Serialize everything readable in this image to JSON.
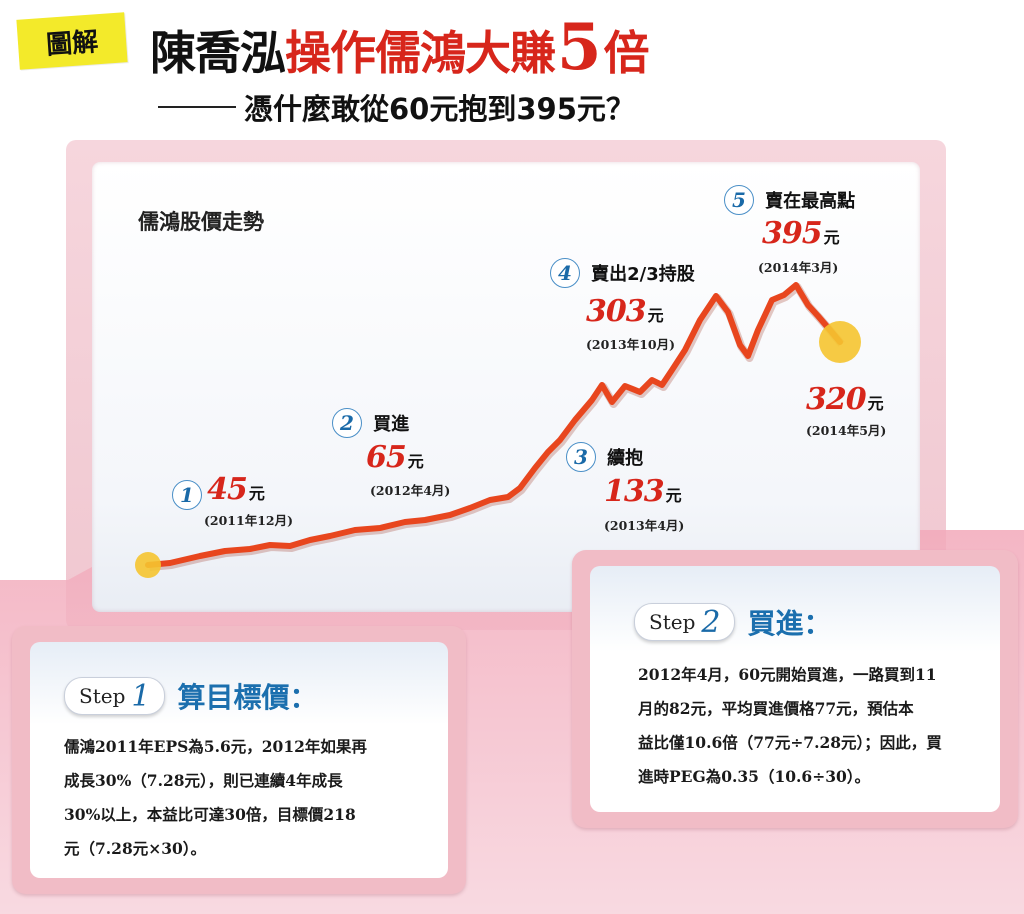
{
  "header": {
    "tag": "圖解",
    "title_black": "陳喬泓",
    "title_red": "操作儒鴻大賺",
    "title_big": "5",
    "title_end": "倍",
    "subtitle": "憑什麼敢從60元抱到395元？"
  },
  "chart_data": {
    "type": "line",
    "title": "儒鴻股價走勢",
    "colors": {
      "line": "#e8461e",
      "start_dot": "#f5c430",
      "end_dot": "#f5c430"
    },
    "annotations": [
      {
        "num": "1",
        "label": "",
        "price": "45",
        "unit": "元",
        "date": "(2011年12月)"
      },
      {
        "num": "2",
        "label": "買進",
        "price": "65",
        "unit": "元",
        "date": "(2012年4月)"
      },
      {
        "num": "3",
        "label": "續抱",
        "price": "133",
        "unit": "元",
        "date": "(2013年4月)"
      },
      {
        "num": "4",
        "label": "賣出2/3持股",
        "price": "303",
        "unit": "元",
        "date": "(2013年10月)"
      },
      {
        "num": "5",
        "label": "賣在最高點",
        "price": "395",
        "unit": "元",
        "date": "(2014年3月)"
      },
      {
        "num": "",
        "label": "",
        "price": "320",
        "unit": "元",
        "date": "(2014年5月)"
      }
    ]
  },
  "steps": [
    {
      "word": "Step",
      "num": "1",
      "name": "算目標價：",
      "lines": [
        "儒鴻2011年EPS為5.6元，2012年如果再",
        "成長30%（7.28元），則已連續4年成長",
        "30%以上，本益比可達30倍，目標價218",
        "元（7.28元×30）。"
      ]
    },
    {
      "word": "Step",
      "num": "2",
      "name": "買進：",
      "lines": [
        "2012年4月，60元開始買進，一路買到11",
        "月的82元，平均買進價格77元，預估本",
        "益比僅10.6倍（77元÷7.28元）；因此，買",
        "進時PEG為0.35（10.6÷30）。"
      ]
    }
  ]
}
